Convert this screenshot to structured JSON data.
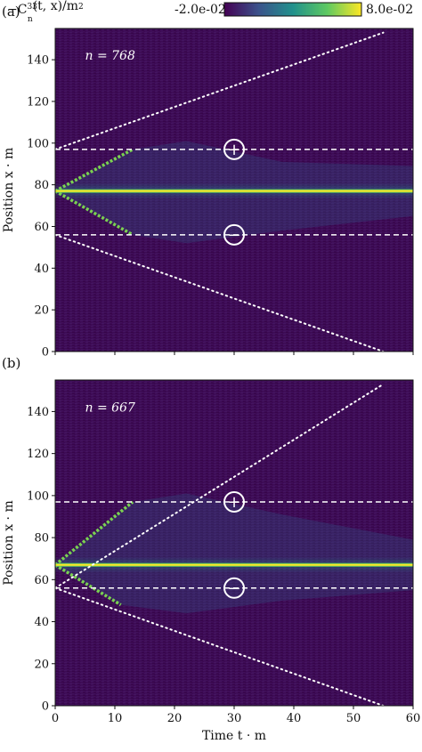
{
  "chart_data": [
    {
      "type": "heatmap",
      "panel_label": "(a)",
      "annotation": "n = 768",
      "xlabel": "",
      "ylabel": "Position x · m",
      "xlim": [
        0,
        60
      ],
      "ylim": [
        0,
        155
      ],
      "xticks": [
        0,
        10,
        20,
        30,
        40,
        50,
        60
      ],
      "yticks": [
        0,
        20,
        40,
        60,
        80,
        100,
        120,
        140
      ],
      "defect_position": 77,
      "upper_dashed_line": 97,
      "lower_dashed_line": 56,
      "upper_symbol": "+",
      "lower_symbol": "−",
      "symbol_x": 30,
      "light_cone_upper": [
        [
          0,
          97
        ],
        [
          55,
          153
        ]
      ],
      "light_cone_lower": [
        [
          0,
          56
        ],
        [
          55,
          0
        ]
      ],
      "wavefront_upper": [
        [
          0,
          77
        ],
        [
          13,
          97
        ]
      ],
      "wavefront_lower": [
        [
          0,
          77
        ],
        [
          13,
          56
        ]
      ]
    },
    {
      "type": "heatmap",
      "panel_label": "(b)",
      "annotation": "n = 667",
      "xlabel": "Time t · m",
      "ylabel": "Position x · m",
      "xlim": [
        0,
        60
      ],
      "ylim": [
        0,
        155
      ],
      "xticks": [
        0,
        10,
        20,
        30,
        40,
        50,
        60
      ],
      "yticks": [
        0,
        20,
        40,
        60,
        80,
        100,
        120,
        140
      ],
      "defect_position": 67,
      "upper_dashed_line": 97,
      "lower_dashed_line": 56,
      "upper_symbol": "+",
      "lower_symbol": "−",
      "symbol_x": 30,
      "light_cone_upper": [
        [
          0,
          56
        ],
        [
          55,
          153
        ]
      ],
      "light_cone_lower": [
        [
          0,
          56
        ],
        [
          55,
          0
        ]
      ],
      "wavefront_upper": [
        [
          0,
          67
        ],
        [
          13,
          97
        ]
      ],
      "wavefront_lower": [
        [
          0,
          67
        ],
        [
          11,
          48
        ]
      ]
    }
  ],
  "colorbar": {
    "label": "−C_n^33(t, x)/m^2",
    "min_label": "-2.0e-02",
    "max_label": "8.0e-02",
    "colors": [
      "#440154",
      "#3b528b",
      "#21918c",
      "#5ec962",
      "#fde725"
    ]
  }
}
